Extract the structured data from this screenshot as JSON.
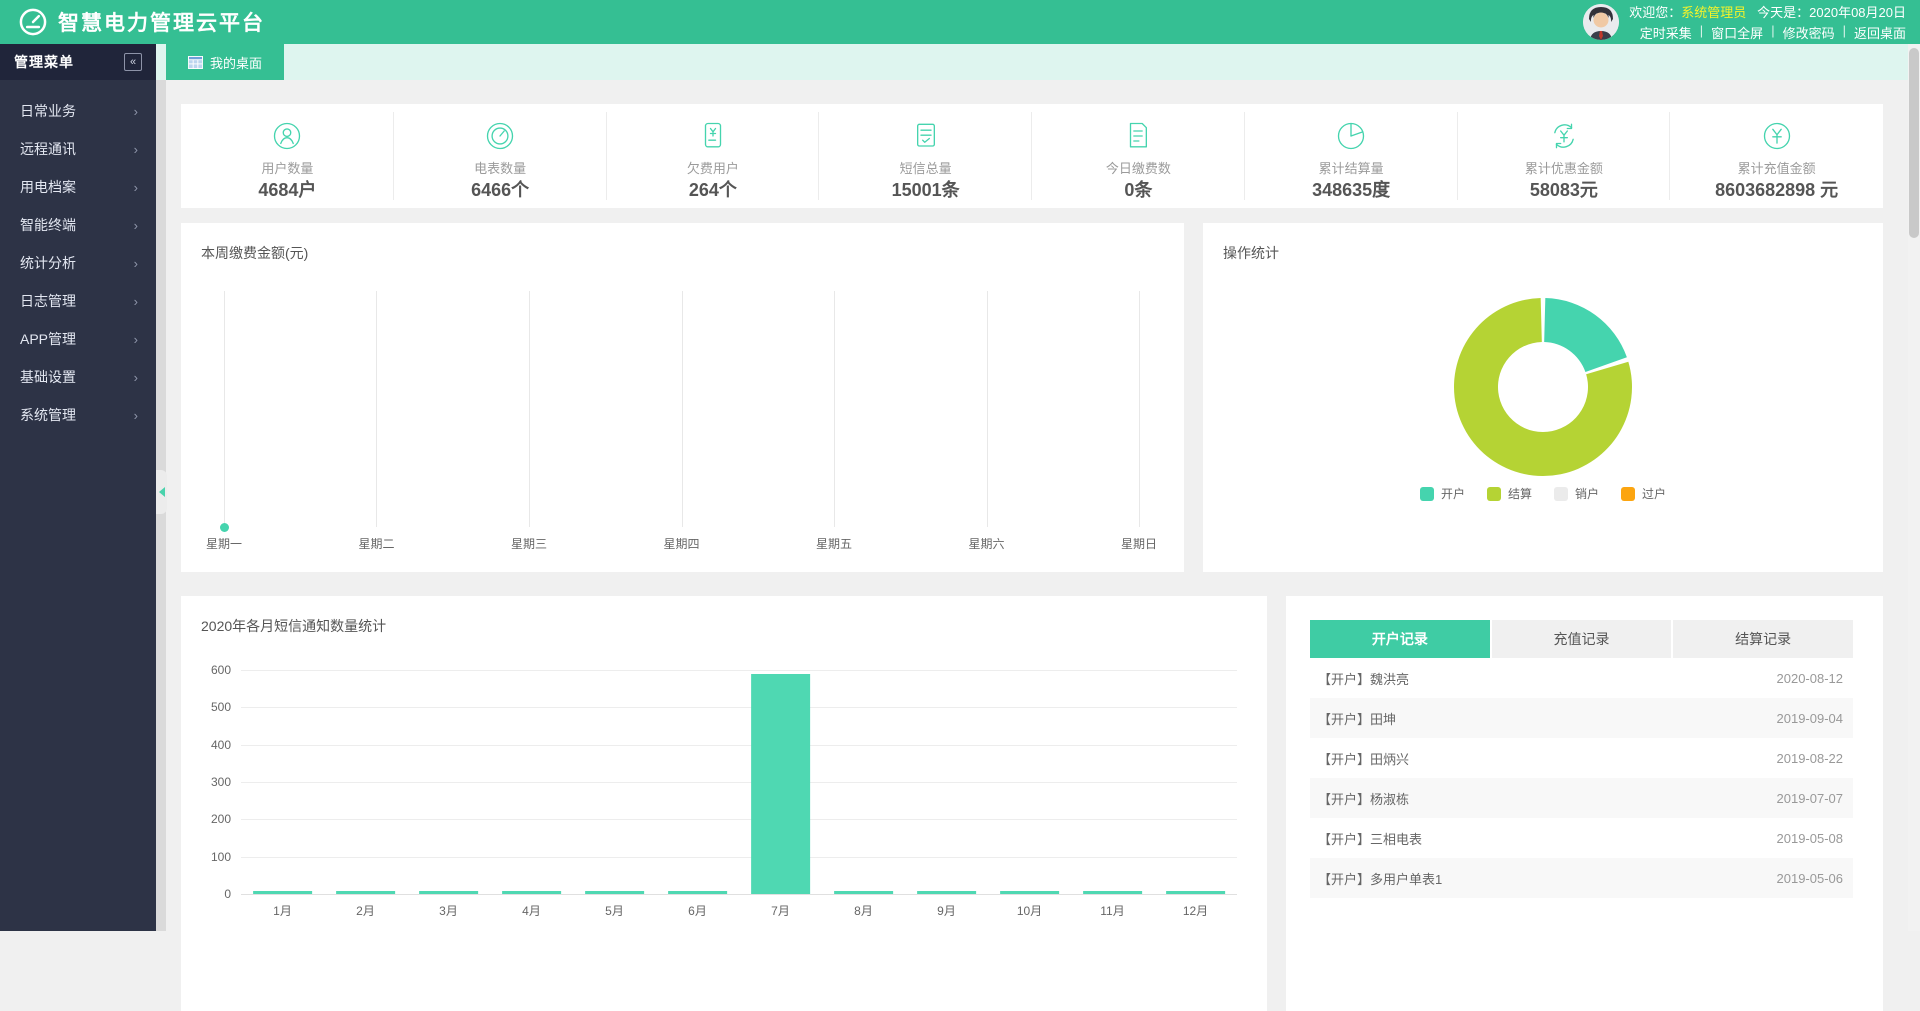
{
  "header": {
    "title": "智慧电力管理云平台",
    "welcome_prefix": "欢迎您：",
    "username": "系统管理员",
    "date_prefix": "今天是：",
    "date": "2020年08月20日",
    "links": [
      "定时采集",
      "窗口全屏",
      "修改密码",
      "返回桌面"
    ]
  },
  "tabs": {
    "active_label": "我的桌面"
  },
  "sidebar": {
    "title": "管理菜单",
    "collapse_icon": "«",
    "items": [
      {
        "label": "日常业务"
      },
      {
        "label": "远程通讯"
      },
      {
        "label": "用电档案"
      },
      {
        "label": "智能终端"
      },
      {
        "label": "统计分析"
      },
      {
        "label": "日志管理"
      },
      {
        "label": "APP管理"
      },
      {
        "label": "基础设置"
      },
      {
        "label": "系统管理"
      }
    ]
  },
  "stats": {
    "items": [
      {
        "icon": "user-icon",
        "label": "用户数量",
        "value": "4684户"
      },
      {
        "icon": "meter-icon",
        "label": "电表数量",
        "value": "6466个"
      },
      {
        "icon": "arrears-icon",
        "label": "欠费用户",
        "value": "264个"
      },
      {
        "icon": "sms-icon",
        "label": "短信总量",
        "value": "15001条"
      },
      {
        "icon": "paytoday-icon",
        "label": "今日缴费数",
        "value": "0条"
      },
      {
        "icon": "settle-icon",
        "label": "累计结算量",
        "value": "348635度"
      },
      {
        "icon": "discount-icon",
        "label": "累计优惠金额",
        "value": "58083元"
      },
      {
        "icon": "recharge-icon",
        "label": "累计充值金额",
        "value": "8603682898 元"
      }
    ]
  },
  "records": {
    "tabs": [
      "开户记录",
      "充值记录",
      "结算记录"
    ],
    "active_tab_index": 0,
    "rows": [
      {
        "name": "【开户】魏洪亮",
        "date": "2020-08-12"
      },
      {
        "name": "【开户】田坤",
        "date": "2019-09-04"
      },
      {
        "name": "【开户】田炳兴",
        "date": "2019-08-22"
      },
      {
        "name": "【开户】杨淑栋",
        "date": "2019-07-07"
      },
      {
        "name": "【开户】三相电表",
        "date": "2019-05-08"
      },
      {
        "name": "【开户】多用户单表1",
        "date": "2019-05-06"
      }
    ]
  },
  "colors": {
    "brand_green": "#35bf93",
    "accent_teal": "#45d4ae",
    "donut_green": "#b5d334",
    "legend_gray": "#ebebeb",
    "legend_orange": "#fca510",
    "sidebar_bg": "#2d3346",
    "username_yellow": "#f5f32a"
  },
  "chart_data": [
    {
      "type": "line",
      "title": "本周缴费金额(元)",
      "categories": [
        "星期一",
        "星期二",
        "星期三",
        "星期四",
        "星期五",
        "星期六",
        "星期日"
      ],
      "values": [
        0,
        null,
        null,
        null,
        null,
        null,
        null
      ],
      "ylim": [
        0,
        1
      ],
      "grid": "vertical-only",
      "point_color": "#45d4ae",
      "note": "only Monday has a data point, value 0"
    },
    {
      "type": "pie",
      "donut": true,
      "title": "操作统计",
      "labels": [
        "开户",
        "结算",
        "销户",
        "过户"
      ],
      "values": [
        20,
        80,
        0,
        0
      ],
      "unit": "percent-estimated",
      "colors": [
        "#45d4ae",
        "#b5d334",
        "#ebebeb",
        "#fca510"
      ],
      "legend_position": "bottom"
    },
    {
      "type": "bar",
      "title": "2020年各月短信通知数量统计",
      "categories": [
        "1月",
        "2月",
        "3月",
        "4月",
        "5月",
        "6月",
        "7月",
        "8月",
        "9月",
        "10月",
        "11月",
        "12月"
      ],
      "values": [
        0,
        0,
        0,
        0,
        0,
        0,
        590,
        0,
        0,
        0,
        0,
        0
      ],
      "ylim": [
        0,
        600
      ],
      "yticks": [
        0,
        100,
        200,
        300,
        400,
        500,
        600
      ],
      "bar_color": "#4fd8b2",
      "grid": "horizontal"
    }
  ]
}
